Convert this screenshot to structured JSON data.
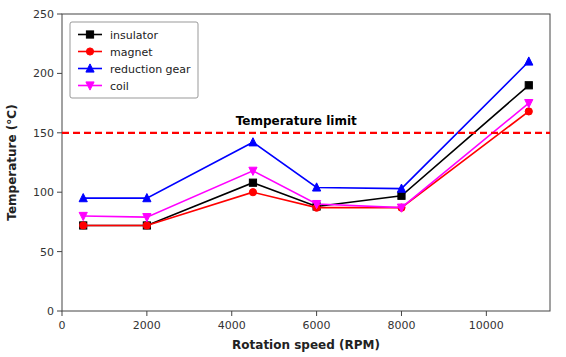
{
  "chart_data": {
    "type": "line",
    "x_label": "Rotation speed (RPM)",
    "y_label": "Temperature (°C)",
    "x": [
      500,
      2000,
      4500,
      6000,
      8000,
      11000
    ],
    "series": [
      {
        "name": "insulator",
        "color": "black",
        "marker": "square",
        "values": [
          72,
          72,
          108,
          88,
          97,
          190
        ]
      },
      {
        "name": "magnet",
        "color": "red",
        "marker": "circle",
        "values": [
          72,
          72,
          100,
          87,
          87,
          168
        ]
      },
      {
        "name": "reduction gear",
        "color": "blue",
        "marker": "triangle-up",
        "values": [
          95,
          95,
          142,
          104,
          103,
          210
        ]
      },
      {
        "name": "coil",
        "color": "magenta",
        "marker": "triangle-down",
        "values": [
          80,
          79,
          118,
          90,
          87,
          175
        ]
      }
    ],
    "annotations": [
      {
        "text": "Temperature limit",
        "y": 150,
        "color": "red",
        "line_style": "dashed"
      }
    ],
    "xlim": [
      0,
      11500
    ],
    "ylim": [
      0,
      250
    ],
    "xticks": [
      0,
      2000,
      4000,
      6000,
      8000,
      10000
    ],
    "yticks": [
      0,
      50,
      100,
      150,
      200,
      250
    ],
    "grid": false,
    "legend": "upper left"
  }
}
